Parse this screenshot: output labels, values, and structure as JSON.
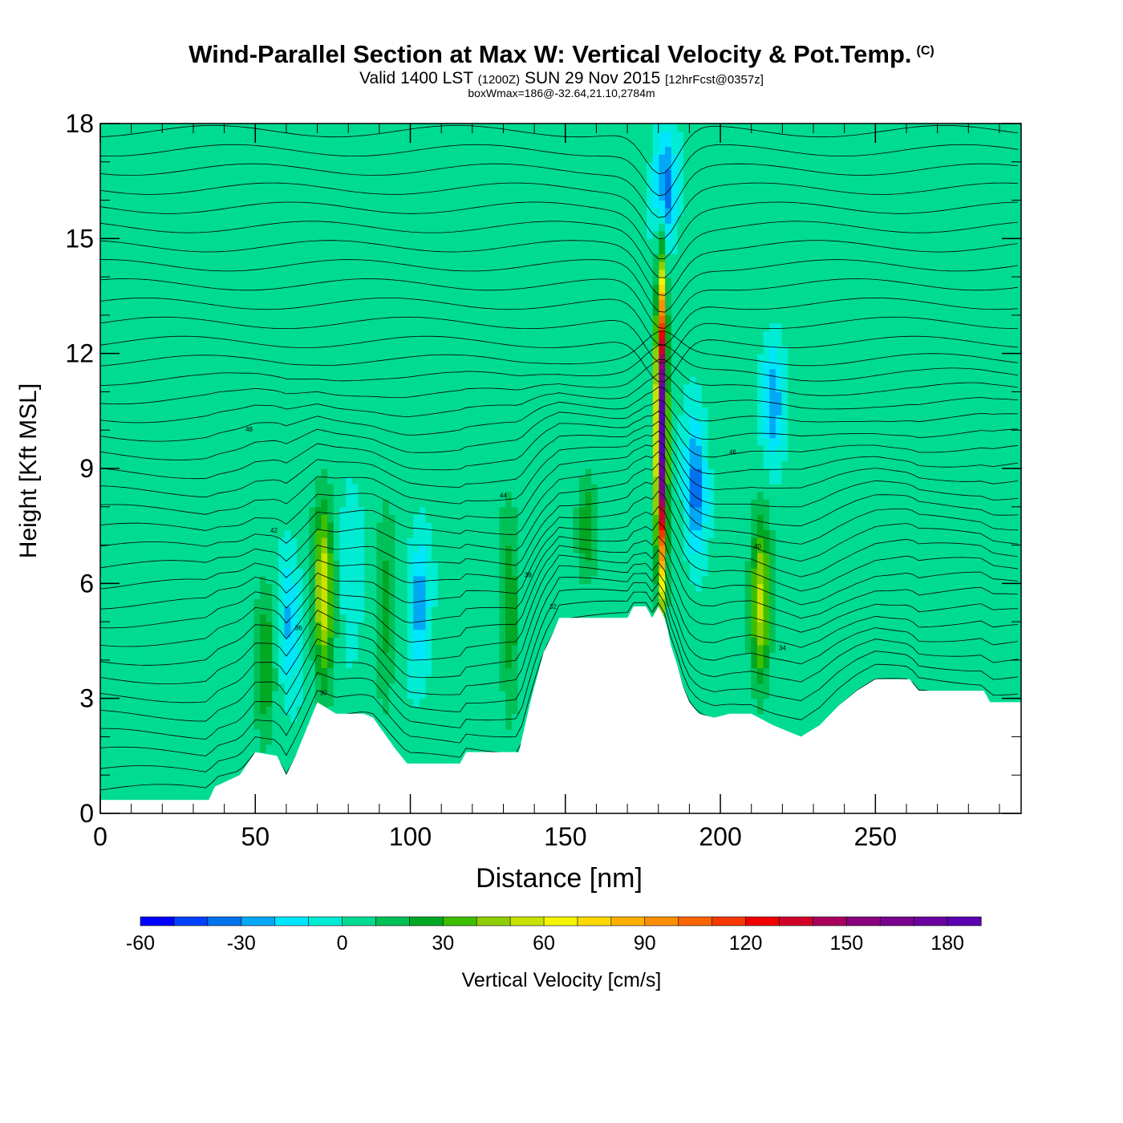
{
  "header": {
    "title": "Wind-Parallel Section at Max W: Vertical Velocity & Pot.Temp.",
    "title_mark": "(C)",
    "subtitle_a": "Valid 1400 LST",
    "subtitle_b": "(1200Z)",
    "subtitle_c": "SUN 29 Nov 2015",
    "subtitle_d": "[12hrFcst@0357z]",
    "sub_subtitle": "boxWmax=186@-32.64,21.10,2784m"
  },
  "chart_data": {
    "type": "heatmap",
    "title": "Wind-Parallel Section at Max W: Vertical Velocity & Pot.Temp.",
    "xlabel": "Distance [nm]",
    "ylabel": "Height [Kft MSL]",
    "xlim": [
      0,
      297
    ],
    "ylim": [
      0,
      18
    ],
    "xticks": [
      0,
      50,
      100,
      150,
      200,
      250
    ],
    "yticks": [
      0,
      3,
      6,
      9,
      12,
      15,
      18
    ],
    "max_w_cm_s": 186,
    "max_w_location": {
      "lat": -32.64,
      "lon": 21.1,
      "height_m": 2784
    },
    "background_w": 0,
    "w_features": [
      {
        "x": 53,
        "y_range": [
          1.5,
          6.5
        ],
        "w": 25
      },
      {
        "x": 61,
        "y_range": [
          3.0,
          7.0
        ],
        "w": -25
      },
      {
        "x": 72,
        "y_range": [
          3.0,
          8.5
        ],
        "w": 55
      },
      {
        "x": 81,
        "y_range": [
          3.0,
          9.0
        ],
        "w": -10
      },
      {
        "x": 92,
        "y_range": [
          2.0,
          8.5
        ],
        "w": 20
      },
      {
        "x": 103,
        "y_range": [
          3.5,
          7.5
        ],
        "w": -30
      },
      {
        "x": 132,
        "y_range": [
          2.0,
          8.5
        ],
        "w": 25
      },
      {
        "x": 157,
        "y_range": [
          6.0,
          9.0
        ],
        "w": 25
      },
      {
        "x": 181,
        "y_range": [
          5.5,
          14.5
        ],
        "w": 186
      },
      {
        "x": 182,
        "y_range": [
          14.5,
          18.0
        ],
        "w": -45
      },
      {
        "x": 192,
        "y_range": [
          6.5,
          10.5
        ],
        "w": -40
      },
      {
        "x": 213,
        "y_range": [
          3.0,
          8.0
        ],
        "w": 50
      },
      {
        "x": 217,
        "y_range": [
          9.0,
          12.5
        ],
        "w": -30
      }
    ],
    "theta_contours": {
      "labels": [
        "30",
        "32",
        "34",
        "36",
        "38",
        "40",
        "42",
        "44",
        "46",
        "48"
      ],
      "start_height": 0.3,
      "spacing_kft": 0.5
    },
    "terrain": [
      [
        0,
        0.35
      ],
      [
        35,
        0.35
      ],
      [
        37,
        0.7
      ],
      [
        45,
        1.0
      ],
      [
        50,
        1.6
      ],
      [
        57,
        1.5
      ],
      [
        60,
        1.0
      ],
      [
        63,
        1.5
      ],
      [
        67,
        2.3
      ],
      [
        70,
        2.9
      ],
      [
        76,
        2.6
      ],
      [
        85,
        2.6
      ],
      [
        88,
        2.5
      ],
      [
        95,
        1.7
      ],
      [
        99,
        1.3
      ],
      [
        116,
        1.3
      ],
      [
        118,
        1.6
      ],
      [
        135,
        1.6
      ],
      [
        137,
        2.3
      ],
      [
        139,
        3.0
      ],
      [
        143,
        4.2
      ],
      [
        146,
        4.7
      ],
      [
        148,
        5.1
      ],
      [
        163,
        5.1
      ],
      [
        170,
        5.1
      ],
      [
        172,
        5.4
      ],
      [
        176,
        5.4
      ],
      [
        178,
        5.1
      ],
      [
        180,
        5.4
      ],
      [
        182,
        5.1
      ],
      [
        183,
        4.8
      ],
      [
        184,
        4.4
      ],
      [
        186,
        3.9
      ],
      [
        188,
        3.3
      ],
      [
        190,
        2.9
      ],
      [
        193,
        2.6
      ],
      [
        198,
        2.5
      ],
      [
        203,
        2.6
      ],
      [
        210,
        2.6
      ],
      [
        217,
        2.3
      ],
      [
        226,
        2.0
      ],
      [
        232,
        2.3
      ],
      [
        238,
        2.8
      ],
      [
        244,
        3.2
      ],
      [
        250,
        3.5
      ],
      [
        261,
        3.5
      ],
      [
        264,
        3.2
      ],
      [
        285,
        3.2
      ],
      [
        287,
        2.9
      ],
      [
        297,
        2.9
      ]
    ],
    "colorbar": {
      "label": "Vertical Velocity [cm/s]",
      "min": -60,
      "max": 190,
      "step": 10,
      "tick_labels": [
        "-60",
        "-30",
        "0",
        "30",
        "60",
        "90",
        "120",
        "150",
        "180"
      ],
      "colors": [
        "#0000ff",
        "#0040ff",
        "#0072ee",
        "#00a8f5",
        "#00e6ff",
        "#00ecd3",
        "#00db92",
        "#00c058",
        "#00a825",
        "#3dbf00",
        "#8fce00",
        "#c8e200",
        "#f3f500",
        "#fcd900",
        "#fcb000",
        "#fb8f00",
        "#fa6500",
        "#f73800",
        "#f00000",
        "#d00028",
        "#a8005c",
        "#8a007e",
        "#7a0090",
        "#6a00a0",
        "#5a00b0"
      ]
    }
  }
}
